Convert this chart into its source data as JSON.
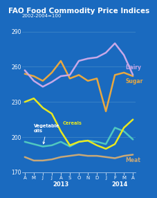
{
  "title": "FAO Food Commodity Price Indices",
  "subtitle": "2002-2004=100",
  "background_color": "#1a6abf",
  "title_bg_color": "#0d3d7a",
  "text_color": "#ffffff",
  "x_labels": [
    "A",
    "M",
    "J",
    "J",
    "A",
    "S",
    "O",
    "N",
    "D",
    "J",
    "F",
    "M",
    "A"
  ],
  "ylim": [
    170,
    295
  ],
  "yticks": [
    170,
    200,
    230,
    260,
    290
  ],
  "series": {
    "Dairy": {
      "color": "#c8a8e8",
      "data": [
        257,
        248,
        243,
        247,
        252,
        253,
        265,
        267,
        268,
        272,
        280,
        270,
        253
      ]
    },
    "Sugar": {
      "color": "#e8a840",
      "data": [
        254,
        252,
        248,
        255,
        265,
        250,
        253,
        248,
        250,
        222,
        253,
        255,
        252
      ]
    },
    "Vegetable oils": {
      "color": "#50c8c0",
      "data": [
        196,
        194,
        192,
        193,
        196,
        192,
        196,
        197,
        196,
        194,
        208,
        205,
        198
      ]
    },
    "Cereals": {
      "color": "#e8e820",
      "data": [
        230,
        233,
        225,
        220,
        205,
        193,
        196,
        197,
        193,
        190,
        194,
        208,
        215
      ]
    },
    "Meat": {
      "color": "#c8a878",
      "data": [
        183,
        180,
        180,
        181,
        183,
        184,
        185,
        184,
        184,
        183,
        182,
        184,
        185
      ]
    }
  }
}
